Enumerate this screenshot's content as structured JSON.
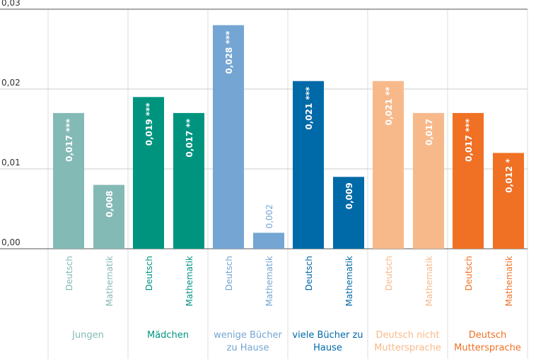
{
  "chart_data": {
    "type": "bar",
    "ylim": [
      0,
      0.03
    ],
    "yticks": [
      {
        "value": 0,
        "label": "0,00"
      },
      {
        "value": 0.01,
        "label": "0,01"
      },
      {
        "value": 0.02,
        "label": "0,02"
      },
      {
        "value": 0.03,
        "label": "0,03"
      }
    ],
    "grid": true,
    "groups": [
      {
        "name": "Jungen",
        "color": "#84bab6",
        "categories": [
          "Deutsch",
          "Mathematik"
        ],
        "values": [
          0.017,
          0.008
        ],
        "value_labels": [
          "0,017 ***",
          "0,008"
        ]
      },
      {
        "name": "Mädchen",
        "color": "#00947f",
        "categories": [
          "Deutsch",
          "Mathematik"
        ],
        "values": [
          0.019,
          0.017
        ],
        "value_labels": [
          "0,019 ***",
          "0,017 **"
        ]
      },
      {
        "name": "wenige Bücher zu Hause",
        "color": "#74a5d3",
        "categories": [
          "Deutsch",
          "Mathematik"
        ],
        "values": [
          0.028,
          0.002
        ],
        "value_labels": [
          "0,028 ***",
          "0,002"
        ]
      },
      {
        "name": "viele Bücher zu Hause",
        "color": "#0069a8",
        "categories": [
          "Deutsch",
          "Mathematik"
        ],
        "values": [
          0.021,
          0.009
        ],
        "value_labels": [
          "0,021 ***",
          "0,009"
        ]
      },
      {
        "name": "Deutsch nicht Muttersprache",
        "color": "#f8b98a",
        "categories": [
          "Deutsch",
          "Mathematik"
        ],
        "values": [
          0.021,
          0.017
        ],
        "value_labels": [
          "0,021 **",
          "0,017"
        ]
      },
      {
        "name": "Deutsch Muttersprache",
        "color": "#f07124",
        "categories": [
          "Deutsch",
          "Mathematik"
        ],
        "values": [
          0.017,
          0.012
        ],
        "value_labels": [
          "0,017 ***",
          "0,012 *"
        ]
      }
    ]
  }
}
